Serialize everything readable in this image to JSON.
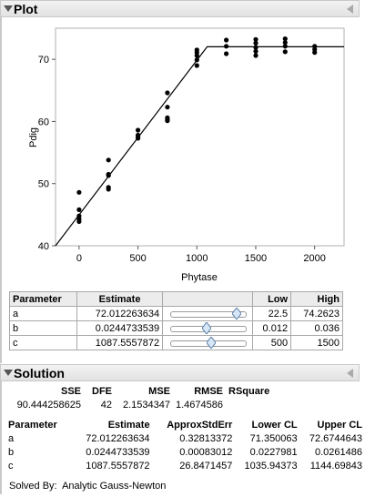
{
  "plot_section": {
    "title": "Plot"
  },
  "solution_section": {
    "title": "Solution"
  },
  "chart_data": {
    "type": "scatter",
    "xlabel": "Phytase",
    "ylabel": "Pdig",
    "xlim": [
      -200,
      2250
    ],
    "ylim": [
      40,
      75
    ],
    "x_ticks": [
      0,
      500,
      1000,
      1500,
      2000
    ],
    "y_ticks": [
      40,
      50,
      60,
      70
    ],
    "points": [
      [
        0,
        48.6
      ],
      [
        0,
        45.8
      ],
      [
        0,
        44.8
      ],
      [
        0,
        44.3
      ],
      [
        0,
        43.9
      ],
      [
        250,
        53.8
      ],
      [
        250,
        51.5
      ],
      [
        250,
        51.3
      ],
      [
        250,
        49.4
      ],
      [
        250,
        49.1
      ],
      [
        500,
        58.6
      ],
      [
        500,
        57.8
      ],
      [
        500,
        57.5
      ],
      [
        500,
        57.3
      ],
      [
        750,
        64.6
      ],
      [
        750,
        62.3
      ],
      [
        750,
        60.6
      ],
      [
        750,
        60.3
      ],
      [
        750,
        60.1
      ],
      [
        1000,
        71.5
      ],
      [
        1000,
        71.1
      ],
      [
        1000,
        70.6
      ],
      [
        1000,
        69.9
      ],
      [
        1000,
        69.0
      ],
      [
        1250,
        73.1
      ],
      [
        1250,
        72.1
      ],
      [
        1250,
        70.9
      ],
      [
        1500,
        73.2
      ],
      [
        1500,
        72.6
      ],
      [
        1500,
        71.9
      ],
      [
        1500,
        71.3
      ],
      [
        1500,
        70.6
      ],
      [
        1750,
        73.3
      ],
      [
        1750,
        72.7
      ],
      [
        1750,
        72.1
      ],
      [
        1750,
        71.2
      ],
      [
        2000,
        72.1
      ],
      [
        2000,
        71.6
      ],
      [
        2000,
        71.1
      ]
    ],
    "fit_line": [
      [
        -200,
        40.0
      ],
      [
        1087.56,
        72.01
      ],
      [
        2250,
        72.01
      ]
    ]
  },
  "parameters_table": {
    "headers": [
      "Parameter",
      "Estimate",
      "",
      "Low",
      "High"
    ],
    "rows": [
      {
        "name": "a",
        "estimate": "72.012263634",
        "low": "22.5",
        "high": "74.2623",
        "slider_fraction": 0.96
      },
      {
        "name": "b",
        "estimate": "0.0244733539",
        "low": "0.012",
        "high": "0.036",
        "slider_fraction": 0.52
      },
      {
        "name": "c",
        "estimate": "1087.5557872",
        "low": "500",
        "high": "1500",
        "slider_fraction": 0.59
      }
    ]
  },
  "solution_summary": {
    "headers": [
      "SSE",
      "DFE",
      "MSE",
      "RMSE",
      "RSquare"
    ],
    "values": [
      "90.444258625",
      "42",
      "2.1534347",
      "1.4674586",
      ""
    ]
  },
  "solution_table": {
    "headers": [
      "Parameter",
      "Estimate",
      "ApproxStdErr",
      "Lower CL",
      "Upper CL"
    ],
    "rows": [
      [
        "a",
        "72.012263634",
        "0.32813372",
        "71.350063",
        "72.6744643"
      ],
      [
        "b",
        "0.0244733539",
        "0.00083012",
        "0.0227981",
        "0.0261486"
      ],
      [
        "c",
        "1087.5557872",
        "26.8471457",
        "1035.94373",
        "1144.69843"
      ]
    ]
  },
  "solved_by": "Solved By:  Analytic Gauss-Newton"
}
